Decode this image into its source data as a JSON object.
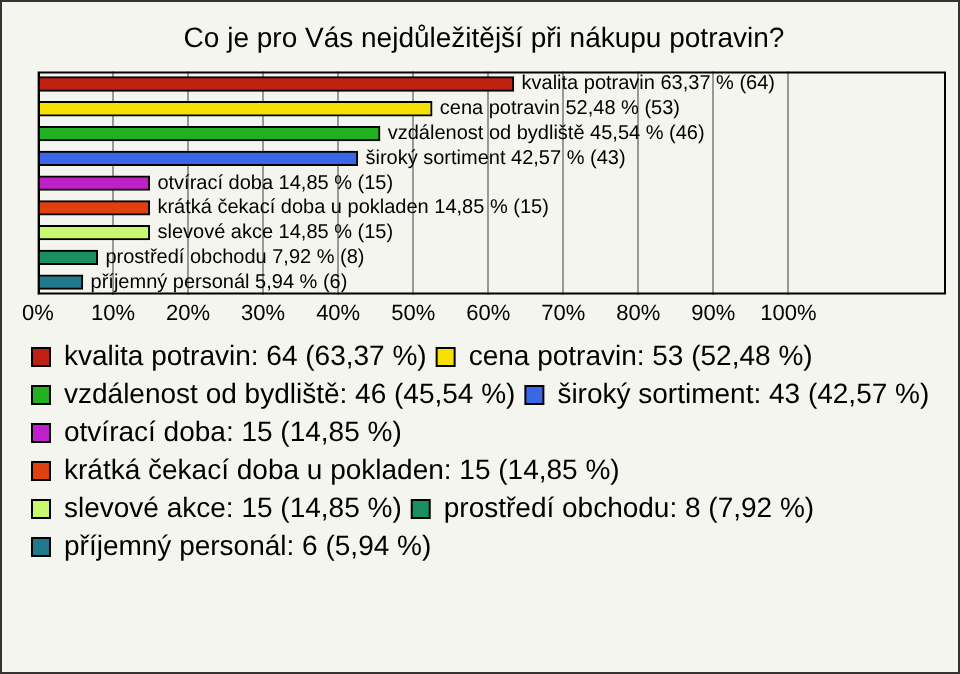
{
  "chart_data": {
    "type": "bar",
    "orientation": "horizontal",
    "title": "Co je pro Vás nejdůležitější při nákupu potravin?",
    "categories": [
      null,
      null,
      null,
      null,
      null,
      null,
      null,
      null,
      null
    ],
    "series": [
      {
        "name": "kvalita potravin: 64 (63,37 %)",
        "color": "#c0200f",
        "values": [
          63.37,
          null,
          null,
          null,
          null,
          null,
          null,
          null,
          null
        ],
        "value_labels": [
          "kvalita potravin 63,37 % (64)",
          null,
          null,
          null,
          null,
          null,
          null,
          null,
          null
        ]
      },
      {
        "name": "cena potravin: 53 (52,48 %)",
        "color": "#f5e000",
        "values": [
          null,
          52.48,
          null,
          null,
          null,
          null,
          null,
          null,
          null
        ],
        "value_labels": [
          null,
          "cena potravin 52,48 % (53)",
          null,
          null,
          null,
          null,
          null,
          null,
          null
        ]
      },
      {
        "name": "vzdálenost od bydliště: 46 (45,54 %)",
        "color": "#20b020",
        "values": [
          null,
          null,
          45.54,
          null,
          null,
          null,
          null,
          null,
          null
        ],
        "value_labels": [
          null,
          null,
          "vzdálenost od bydliště 45,54 % (46)",
          null,
          null,
          null,
          null,
          null,
          null
        ]
      },
      {
        "name": "široký sortiment: 43 (42,57 %)",
        "color": "#3a66e8",
        "values": [
          null,
          null,
          null,
          42.57,
          null,
          null,
          null,
          null,
          null
        ],
        "value_labels": [
          null,
          null,
          null,
          "široký sortiment 42,57 % (43)",
          null,
          null,
          null,
          null,
          null
        ]
      },
      {
        "name": "otvírací doba: 15 (14,85 %)",
        "color": "#c020c8",
        "values": [
          null,
          null,
          null,
          null,
          14.85,
          null,
          null,
          null,
          null
        ],
        "value_labels": [
          null,
          null,
          null,
          null,
          "otvírací doba 14,85 % (15)",
          null,
          null,
          null,
          null
        ]
      },
      {
        "name": "krátká čekací doba u pokladen: 15 (14,85 %)",
        "color": "#e04010",
        "values": [
          null,
          null,
          null,
          null,
          null,
          14.85,
          null,
          null,
          null
        ],
        "value_labels": [
          null,
          null,
          null,
          null,
          null,
          "krátká čekací doba u pokladen 14,85 % (15)",
          null,
          null,
          null
        ]
      },
      {
        "name": "slevové akce: 15 (14,85 %)",
        "color": "#c8f870",
        "values": [
          null,
          null,
          null,
          null,
          null,
          null,
          14.85,
          null,
          null
        ],
        "value_labels": [
          null,
          null,
          null,
          null,
          null,
          null,
          "slevové akce 14,85 % (15)",
          null,
          null
        ]
      },
      {
        "name": "prostředí obchodu: 8 (7,92 %)",
        "color": "#1a9060",
        "values": [
          null,
          null,
          null,
          null,
          null,
          null,
          null,
          7.92,
          null
        ],
        "value_labels": [
          null,
          null,
          null,
          null,
          null,
          null,
          null,
          "prostředí obchodu 7,92 % (8)",
          null
        ]
      },
      {
        "name": "příjemný personál: 6 (5,94 %)",
        "color": "#20788c",
        "values": [
          null,
          null,
          null,
          null,
          null,
          null,
          null,
          null,
          5.94
        ],
        "value_labels": [
          null,
          null,
          null,
          null,
          null,
          null,
          null,
          null,
          "příjemný personál 5,94 % (6)"
        ]
      }
    ],
    "xlim": [
      0,
      121
    ],
    "xticks": [
      {
        "value": 0,
        "label": "0%"
      },
      {
        "value": 10,
        "label": "10%"
      },
      {
        "value": 20,
        "label": "20%"
      },
      {
        "value": 30,
        "label": "30%"
      },
      {
        "value": 40,
        "label": "40%"
      },
      {
        "value": 50,
        "label": "50%"
      },
      {
        "value": 60,
        "label": "60%"
      },
      {
        "value": 70,
        "label": "70%"
      },
      {
        "value": 80,
        "label": "80%"
      },
      {
        "value": 90,
        "label": "90%"
      },
      {
        "value": 100,
        "label": "100%"
      }
    ],
    "grid": "x",
    "legend": "bottom",
    "tick_labels": "x"
  }
}
